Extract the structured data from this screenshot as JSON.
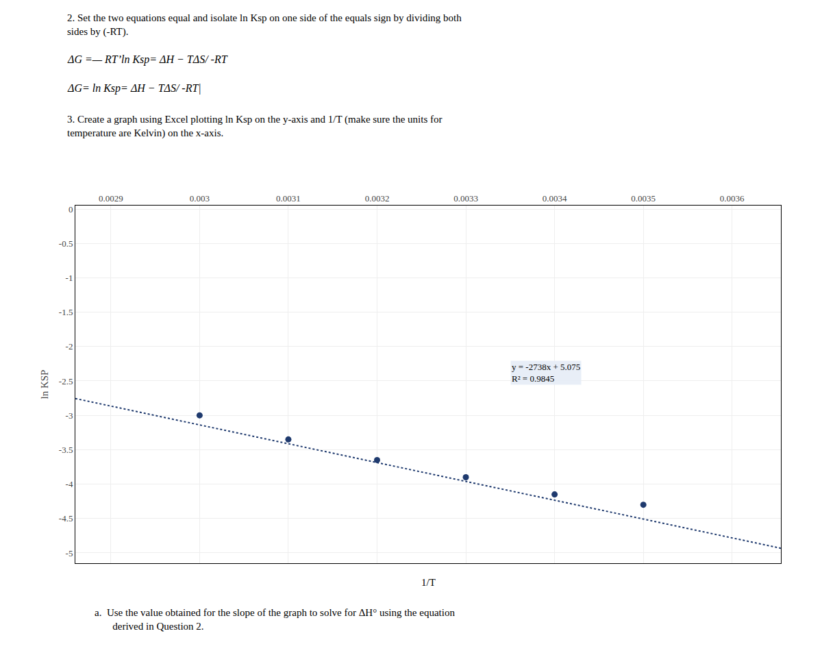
{
  "chart_data": {
    "type": "scatter",
    "header": [
      "2. Set the two equations equal and isolate ln Ksp on one side of the equals sign by dividing both\nsides by (-RT).",
      "ΔG =— RT’ln Ksp= ΔH − TΔS/ -RT",
      "ΔG= ln Ksp= ΔH − TΔS/ -RT|",
      "3. Create a graph using Excel plotting ln Ksp on the y-axis and 1/T (make sure the units for\ntemperature are Kelvin) on the x-axis."
    ],
    "footnote": "a.  Use the value obtained for the slope of the graph to solve for ΔH° using the equation\n       derived in Question 2.",
    "xlabel": "1/T",
    "ylabel": "ln KSP",
    "series": [
      {
        "type": "scatter",
        "color": "#1F3A6E",
        "marker": "circle",
        "x": [
          0.003,
          0.0031,
          0.0032,
          0.0033,
          0.0034,
          0.0035
        ],
        "values": [
          -3.0,
          -3.35,
          -3.65,
          -3.9,
          -4.15,
          -4.3
        ]
      },
      {
        "type": "line",
        "color": "#1F3A6E",
        "line_style": "dotted",
        "x": [
          0.00286,
          0.003655
        ],
        "values": [
          -2.75568,
          -4.93239
        ]
      }
    ],
    "annotations": [
      {
        "text": "y = -2738x + 5.075\nR² = 0.9845",
        "x": 0.00335,
        "y": -2.2
      }
    ],
    "xlim": [
      0.00286,
      0.003655
    ],
    "ylim": [
      -5.15,
      0.05
    ],
    "xticks": [
      0.0029,
      0.003,
      0.0031,
      0.0032,
      0.0033,
      0.0034,
      0.0035,
      0.0036
    ],
    "yticks": [
      0,
      -0.5,
      -1,
      -1.5,
      -2,
      -2.5,
      -3,
      -3.5,
      -4,
      -4.5,
      -5
    ],
    "grid": true
  }
}
